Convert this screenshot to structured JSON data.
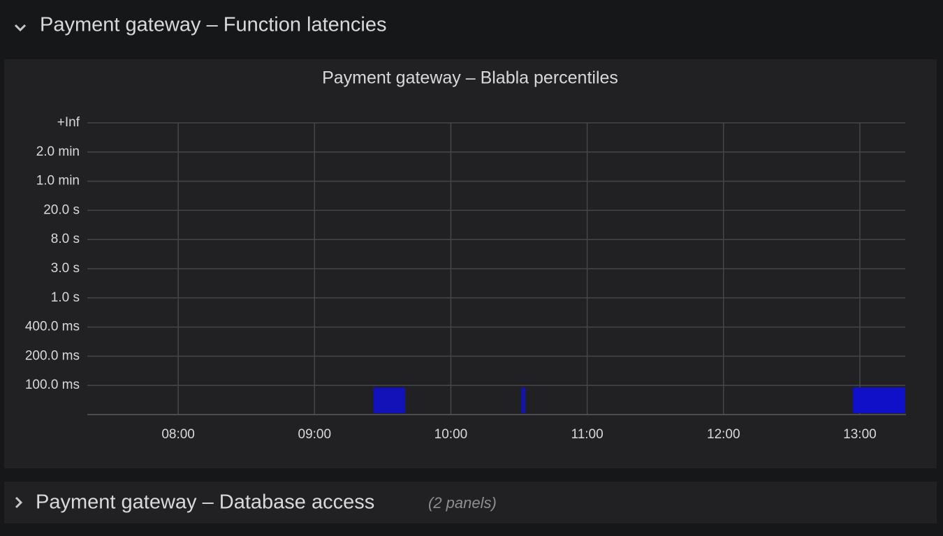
{
  "rows": [
    {
      "title": "Payment gateway – Function latencies"
    },
    {
      "title": "Payment gateway – Database access",
      "note": "(2 panels)"
    }
  ],
  "chart_data": {
    "type": "heatmap",
    "title": "Payment gateway – Blabla percentiles",
    "buckets": [
      "100.0 ms",
      "200.0 ms",
      "400.0 ms",
      "1.0 s",
      "3.0 s",
      "8.0 s",
      "20.0 s",
      "1.0 min",
      "2.0 min",
      "+Inf"
    ],
    "xlim": [
      440,
      800
    ],
    "xticks": [
      {
        "value": 480,
        "label": "08:00"
      },
      {
        "value": 540,
        "label": "09:00"
      },
      {
        "value": 600,
        "label": "10:00"
      },
      {
        "value": 660,
        "label": "11:00"
      },
      {
        "value": 720,
        "label": "12:00"
      },
      {
        "value": 780,
        "label": "13:00"
      }
    ],
    "cells": [
      {
        "bucket": "100.0 ms",
        "start": 566,
        "end": 580,
        "color": "#1212b8"
      },
      {
        "bucket": "100.0 ms",
        "start": 631,
        "end": 633,
        "color": "#1414a8"
      },
      {
        "bucket": "100.0 ms",
        "start": 777,
        "end": 800,
        "color": "#1010c8"
      }
    ],
    "grid": true
  }
}
